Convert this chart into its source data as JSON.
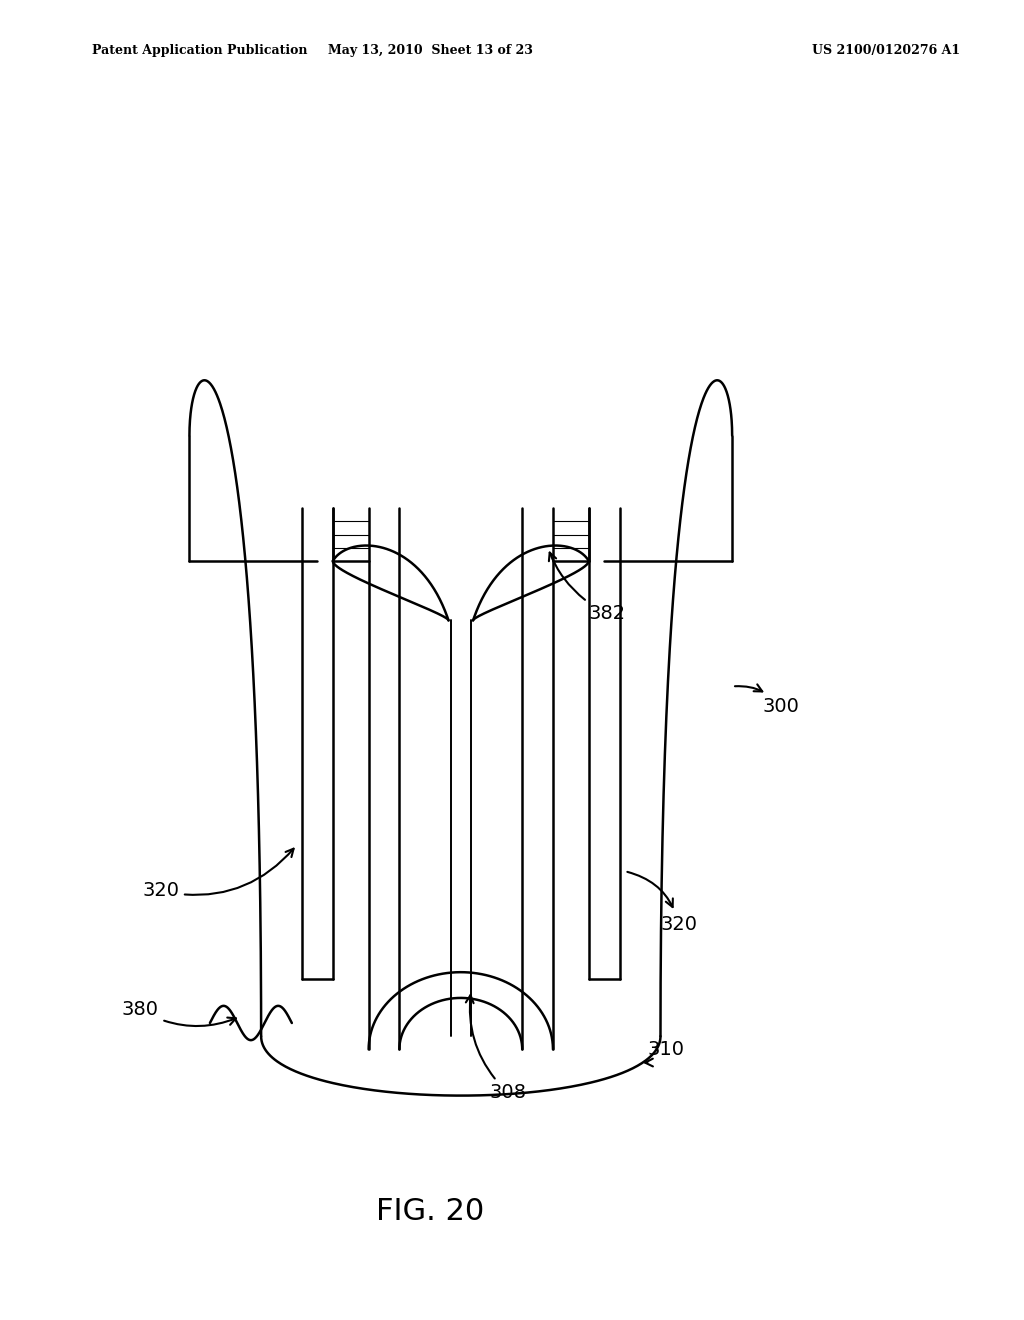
{
  "bg_color": "#ffffff",
  "line_color": "#000000",
  "header_left": "Patent Application Publication",
  "header_mid": "May 13, 2010  Sheet 13 of 23",
  "header_right": "US 2100/0120276 A1",
  "fig_label": "FIG. 20",
  "lw": 1.8,
  "fs_label": 14,
  "fs_header": 9,
  "fs_fig": 22
}
